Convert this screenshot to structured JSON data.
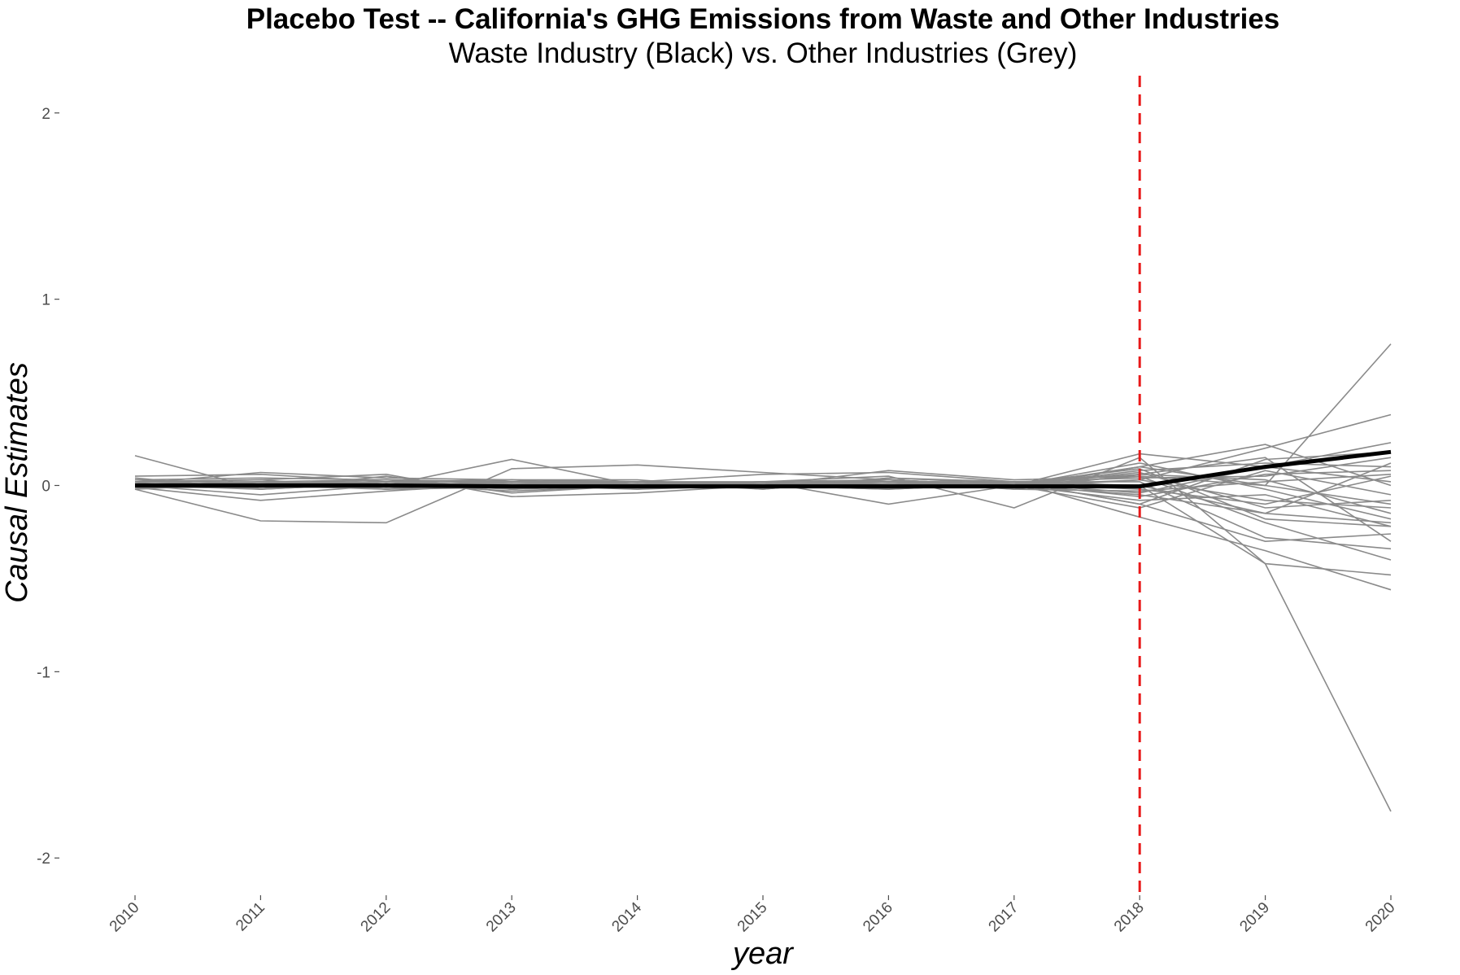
{
  "chart_data": {
    "type": "line",
    "title": "Placebo Test -- California's GHG Emissions from Waste and Other Industries",
    "subtitle": "Waste Industry (Black) vs. Other Industries (Grey)",
    "xlabel": "year",
    "ylabel": "Causal Estimates",
    "x": [
      2010,
      2011,
      2012,
      2013,
      2014,
      2015,
      2016,
      2017,
      2018,
      2019,
      2020
    ],
    "xlim": [
      2010,
      2020
    ],
    "ylim": [
      -2.2,
      2.2
    ],
    "y_ticks": [
      2,
      1,
      0,
      -1,
      -2
    ],
    "y_tick_labels": [
      "2",
      "1",
      "0",
      "-1",
      "-2"
    ],
    "x_tick_labels": [
      "2010",
      "2011",
      "2012",
      "2013",
      "2014",
      "2015",
      "2016",
      "2017",
      "2018",
      "2019",
      "2020"
    ],
    "grid": false,
    "treatment_line": {
      "x": 2018,
      "color": "#e8191a",
      "style": "dashed"
    },
    "treated_series": {
      "color": "#000000",
      "values": [
        0.0,
        0.0,
        0.0,
        -0.005,
        -0.005,
        -0.005,
        -0.005,
        -0.005,
        -0.005,
        0.1,
        0.18
      ]
    },
    "placebo_color": "#8a8a8a",
    "placebo_series": [
      [
        0.16,
        -0.02,
        0.02,
        0.0,
        0.01,
        0.01,
        0.0,
        0.0,
        0.0,
        -0.42,
        -1.75
      ],
      [
        0.05,
        0.06,
        0.02,
        0.0,
        0.01,
        0.0,
        0.02,
        0.0,
        0.05,
        0.0,
        0.76
      ],
      [
        0.03,
        0.04,
        0.03,
        0.02,
        0.02,
        0.02,
        0.03,
        0.0,
        0.03,
        0.2,
        0.38
      ],
      [
        -0.02,
        -0.19,
        -0.2,
        0.09,
        0.11,
        0.07,
        0.03,
        0.0,
        0.17,
        0.1,
        0.23
      ],
      [
        0.0,
        -0.05,
        0.0,
        0.14,
        0.0,
        0.02,
        -0.1,
        0.0,
        0.1,
        0.22,
        0.0
      ],
      [
        0.01,
        0.07,
        0.04,
        0.03,
        0.02,
        0.06,
        0.07,
        0.02,
        -0.17,
        -0.35,
        -0.56
      ],
      [
        0.04,
        -0.02,
        0.05,
        -0.04,
        0.0,
        0.02,
        0.05,
        -0.12,
        0.15,
        -0.42,
        -0.48
      ],
      [
        -0.01,
        -0.08,
        -0.03,
        0.01,
        0.02,
        0.0,
        0.0,
        0.02,
        -0.1,
        -0.3,
        -0.26
      ],
      [
        0.02,
        0.03,
        0.06,
        -0.06,
        -0.04,
        0.0,
        0.08,
        0.03,
        0.05,
        -0.2,
        -0.4
      ],
      [
        0.0,
        0.02,
        -0.02,
        0.03,
        0.03,
        -0.02,
        0.04,
        0.02,
        0.02,
        -0.28,
        -0.34
      ],
      [
        0.02,
        0.0,
        0.01,
        0.0,
        0.0,
        0.01,
        0.02,
        0.0,
        -0.05,
        -0.15,
        -0.2
      ],
      [
        -0.01,
        0.0,
        0.02,
        -0.02,
        0.01,
        0.0,
        -0.02,
        0.01,
        0.06,
        0.15,
        -0.3
      ],
      [
        0.03,
        0.01,
        0.0,
        0.01,
        0.0,
        -0.01,
        0.01,
        0.0,
        0.08,
        0.12,
        0.1
      ],
      [
        0.0,
        0.02,
        -0.01,
        0.02,
        0.02,
        0.01,
        0.0,
        0.0,
        -0.08,
        -0.05,
        -0.22
      ],
      [
        0.01,
        -0.01,
        0.01,
        -0.01,
        -0.01,
        0.02,
        0.02,
        0.02,
        0.04,
        0.05,
        0.15
      ],
      [
        -0.02,
        0.01,
        0.02,
        0.0,
        -0.02,
        0.0,
        0.01,
        0.01,
        -0.02,
        -0.1,
        0.05
      ],
      [
        0.02,
        0.03,
        -0.02,
        0.02,
        0.01,
        0.01,
        -0.01,
        -0.01,
        0.1,
        0.0,
        -0.1
      ],
      [
        0.0,
        -0.02,
        0.01,
        -0.03,
        0.0,
        0.0,
        0.03,
        0.0,
        -0.12,
        0.08,
        -0.05
      ],
      [
        0.01,
        0.0,
        0.0,
        0.01,
        0.02,
        -0.01,
        0.0,
        0.02,
        0.0,
        -0.15,
        0.12
      ],
      [
        -0.01,
        0.02,
        0.03,
        -0.02,
        0.0,
        0.02,
        0.02,
        -0.02,
        0.06,
        0.03,
        -0.15
      ],
      [
        0.03,
        -0.01,
        -0.01,
        0.0,
        0.01,
        0.0,
        -0.02,
        0.01,
        -0.04,
        0.1,
        0.02
      ],
      [
        0.0,
        0.01,
        0.02,
        0.03,
        -0.01,
        0.01,
        0.01,
        0.0,
        0.12,
        -0.02,
        -0.18
      ],
      [
        0.02,
        0.0,
        -0.02,
        -0.01,
        0.02,
        -0.02,
        0.04,
        0.01,
        -0.06,
        0.06,
        0.08
      ],
      [
        -0.02,
        0.02,
        0.0,
        0.02,
        0.0,
        0.01,
        0.0,
        -0.01,
        0.03,
        -0.08,
        -0.12
      ],
      [
        0.01,
        -0.02,
        0.01,
        -0.02,
        0.01,
        0.0,
        0.02,
        0.02,
        -0.1,
        0.14,
        0.18
      ],
      [
        0.0,
        0.01,
        0.03,
        0.01,
        -0.02,
        0.02,
        -0.01,
        0.0,
        0.07,
        -0.12,
        -0.08
      ],
      [
        0.02,
        0.02,
        -0.01,
        0.0,
        0.01,
        -0.01,
        0.03,
        -0.02,
        -0.03,
        0.02,
        0.06
      ],
      [
        -0.01,
        -0.01,
        0.02,
        0.02,
        0.02,
        0.0,
        0.01,
        0.01,
        0.09,
        -0.18,
        -0.22
      ]
    ]
  }
}
